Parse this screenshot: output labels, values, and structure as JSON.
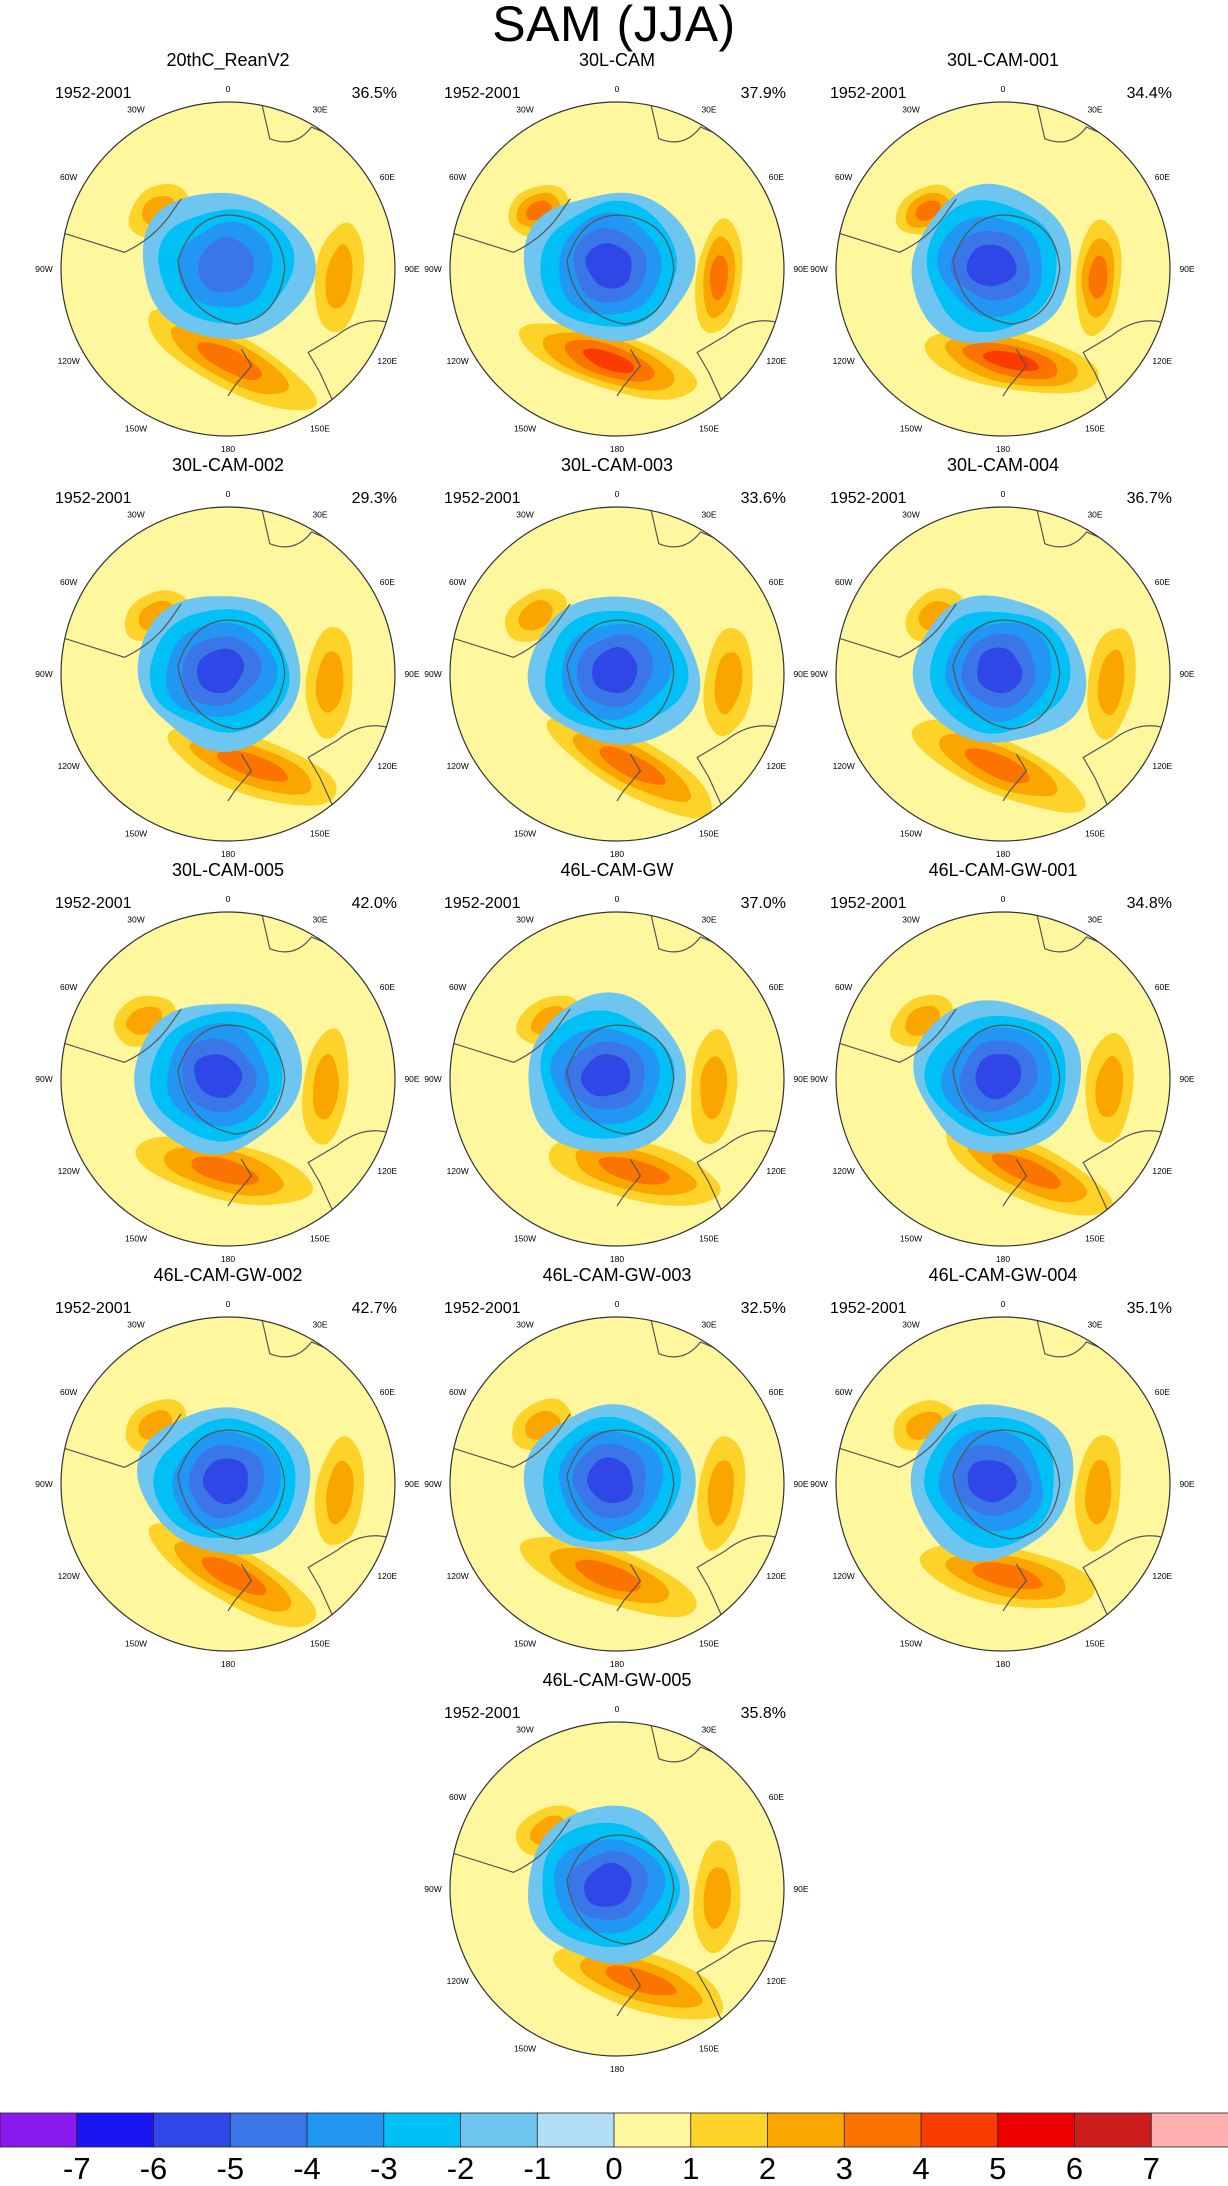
{
  "title": "SAM (JJA)",
  "chart_data": {
    "type": "contour",
    "title": "SAM (JJA)",
    "projection": "south polar stereographic",
    "period": "1952-2001",
    "lon_labels": [
      "0",
      "30E",
      "60E",
      "90E",
      "120E",
      "150E",
      "180",
      "150W",
      "120W",
      "90W",
      "60W",
      "30W"
    ],
    "panels": [
      {
        "name": "20thC_ReanV2",
        "period": "1952-2001",
        "variance": "36.5%",
        "min": -4,
        "max": 3
      },
      {
        "name": "30L-CAM",
        "period": "1952-2001",
        "variance": "37.9%",
        "min": -5,
        "max": 4
      },
      {
        "name": "30L-CAM-001",
        "period": "1952-2001",
        "variance": "34.4%",
        "min": -5,
        "max": 4
      },
      {
        "name": "30L-CAM-002",
        "period": "1952-2001",
        "variance": "29.3%",
        "min": -5,
        "max": 3
      },
      {
        "name": "30L-CAM-003",
        "period": "1952-2001",
        "variance": "33.6%",
        "min": -5,
        "max": 3
      },
      {
        "name": "30L-CAM-004",
        "period": "1952-2001",
        "variance": "36.7%",
        "min": -5,
        "max": 3
      },
      {
        "name": "30L-CAM-005",
        "period": "1952-2001",
        "variance": "42.0%",
        "min": -5,
        "max": 3
      },
      {
        "name": "46L-CAM-GW",
        "period": "1952-2001",
        "variance": "37.0%",
        "min": -5,
        "max": 3
      },
      {
        "name": "46L-CAM-GW-001",
        "period": "1952-2001",
        "variance": "34.8%",
        "min": -5,
        "max": 3
      },
      {
        "name": "46L-CAM-GW-002",
        "period": "1952-2001",
        "variance": "42.7%",
        "min": -5,
        "max": 3
      },
      {
        "name": "46L-CAM-GW-003",
        "period": "1952-2001",
        "variance": "32.5%",
        "min": -5,
        "max": 3
      },
      {
        "name": "46L-CAM-GW-004",
        "period": "1952-2001",
        "variance": "35.1%",
        "min": -5,
        "max": 3
      },
      {
        "name": "46L-CAM-GW-005",
        "period": "1952-2001",
        "variance": "35.8%",
        "min": -5,
        "max": 3
      }
    ],
    "colorbar": {
      "ticks": [
        "-7",
        "-6",
        "-5",
        "-4",
        "-3",
        "-2",
        "-1",
        "0",
        "1",
        "2",
        "3",
        "4",
        "5",
        "6",
        "7"
      ],
      "colors": [
        "#8a1bf0",
        "#1a16f3",
        "#2f47e6",
        "#3b76e9",
        "#2196f3",
        "#00c0f6",
        "#6ec6f0",
        "#b2dff5",
        "#fff79e",
        "#fdd32a",
        "#fba500",
        "#fb7400",
        "#fb3c00",
        "#ef0000",
        "#cc1c1c",
        "#ffb0b0"
      ]
    }
  }
}
